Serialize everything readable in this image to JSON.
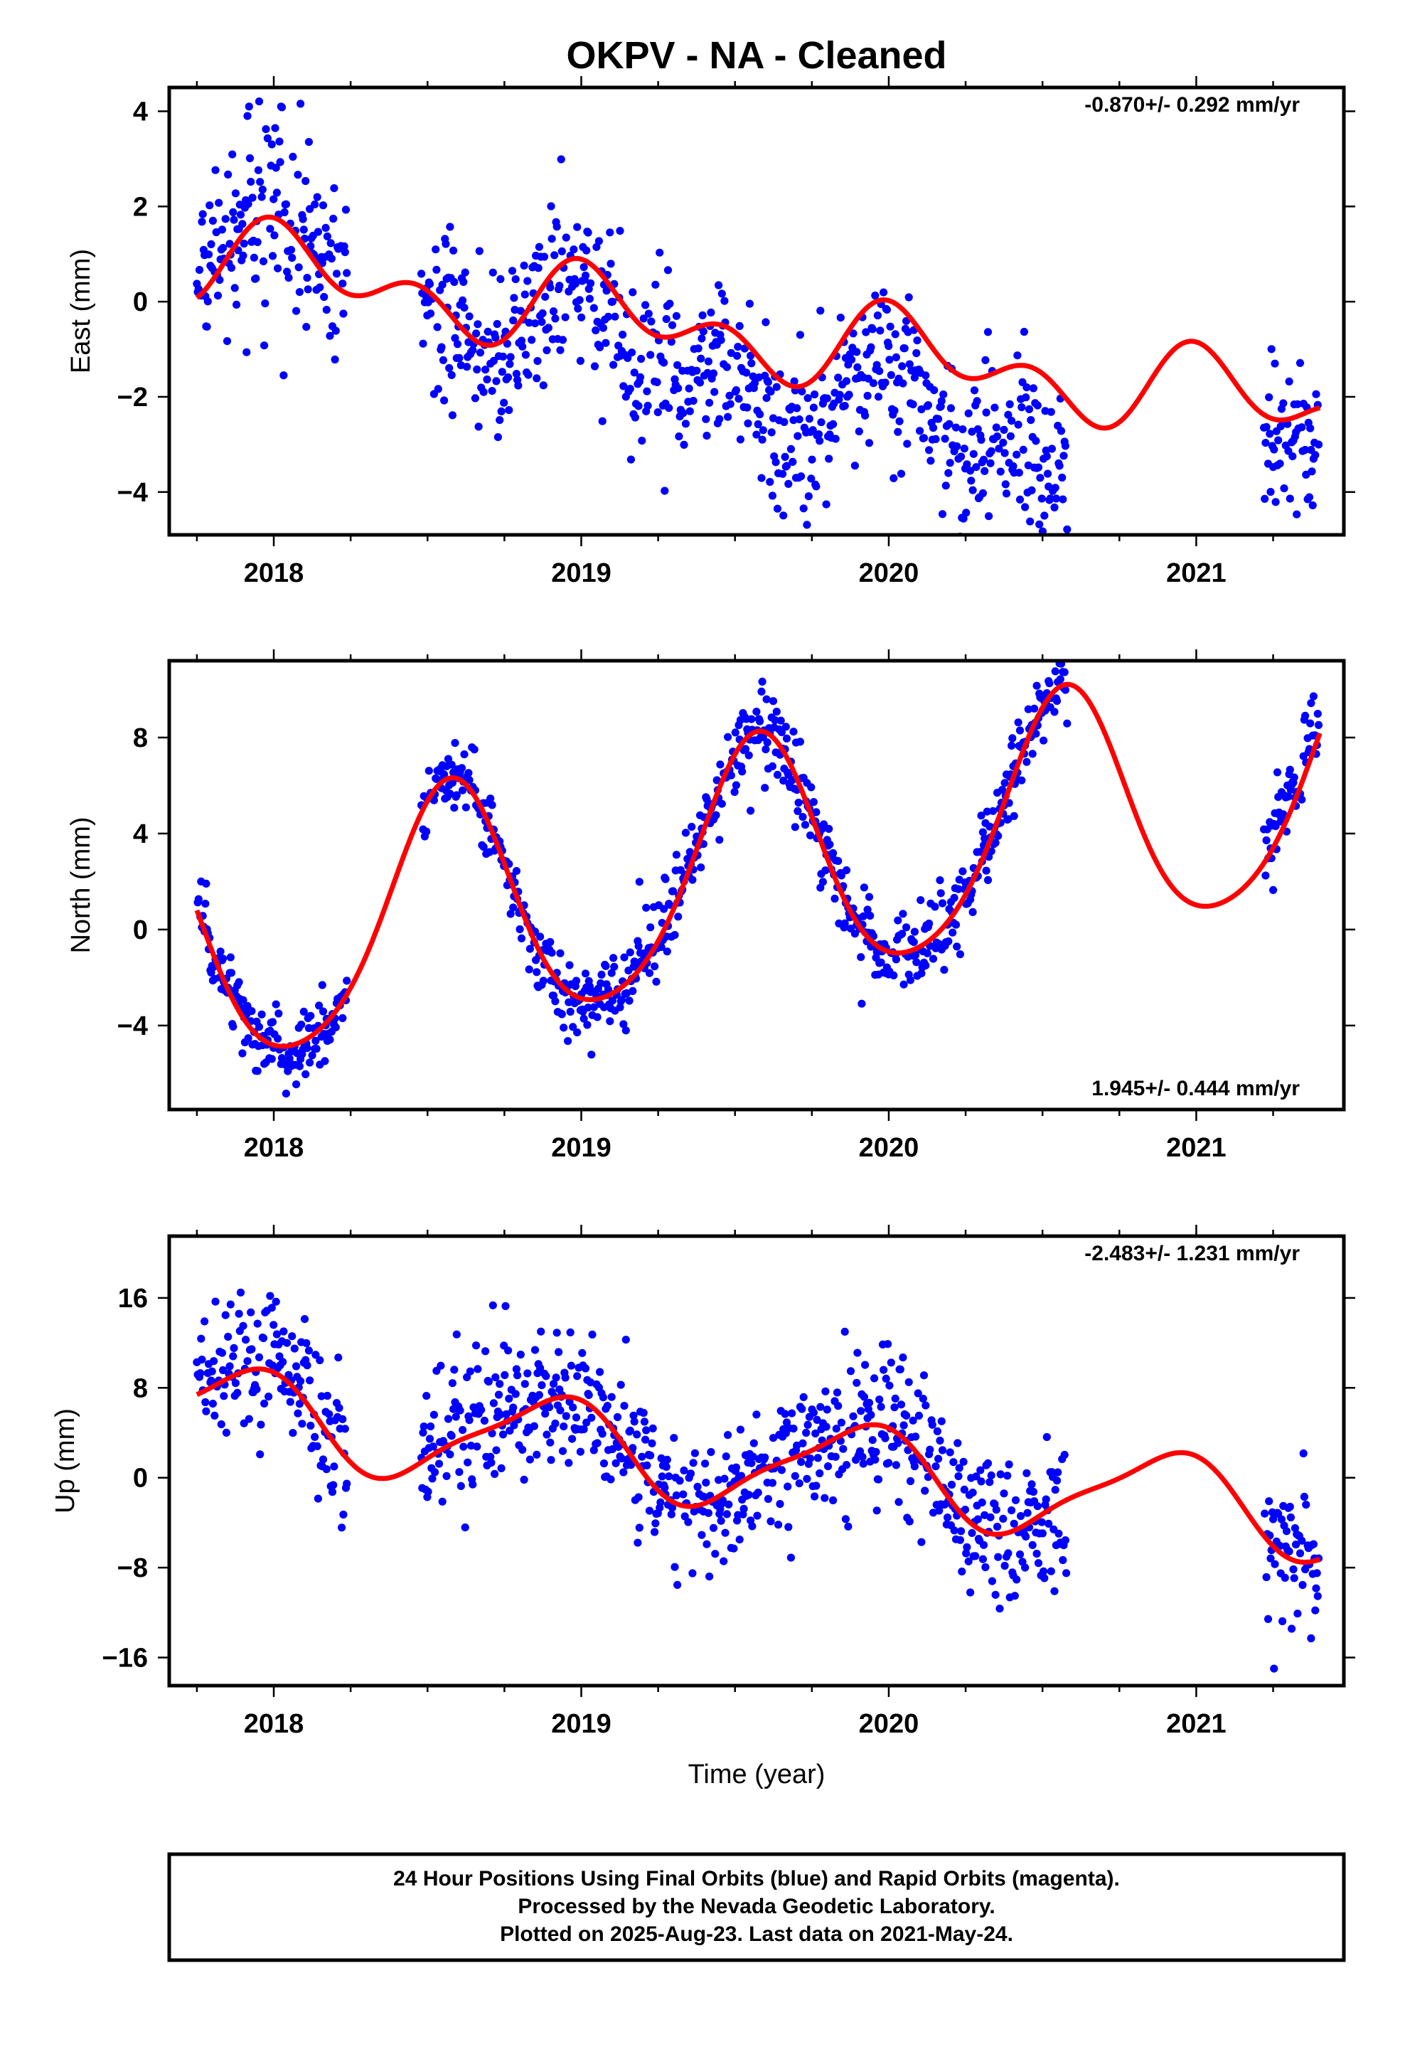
{
  "title": "OKPV  - NA - Cleaned",
  "xlabel": "Time (year)",
  "footer": {
    "line1": "24 Hour Positions Using Final Orbits (blue) and Rapid Orbits (magenta).",
    "line2": "Processed by the Nevada Geodetic Laboratory.",
    "line3": "Plotted on 2025-Aug-23. Last data on 2021-May-24."
  },
  "colors": {
    "points": "#0000ff",
    "fit": "#ff0000",
    "frame": "#000000"
  },
  "chart_data": [
    {
      "type": "scatter",
      "ylabel": "East (mm)",
      "rate": "-0.870+/- 0.292 mm/yr",
      "rate_position": "top-right",
      "xlim": [
        2017.66,
        2021.48
      ],
      "ylim": [
        -4.9,
        4.5
      ],
      "xticks": [
        2018,
        2019,
        2020,
        2021
      ],
      "yticks": [
        -4,
        -2,
        0,
        2,
        4
      ],
      "trend": {
        "t0": 2017.75,
        "a": 0.88,
        "rate": -0.87,
        "c1": 0.55,
        "s1": 0.25,
        "c2": 0.55,
        "s2": -0.2
      },
      "segments": [
        {
          "start": 2017.75,
          "end": 2018.24,
          "base": 0.3,
          "slope": 0.0,
          "noise": 1.0
        },
        {
          "start": 2018.48,
          "end": 2020.58,
          "base": -0.1,
          "slope": -0.8,
          "noise": 0.9
        },
        {
          "start": 2021.22,
          "end": 2021.4,
          "base": -0.6,
          "slope": 0.0,
          "noise": 0.9
        }
      ]
    },
    {
      "type": "scatter",
      "ylabel": "North (mm)",
      "rate": "1.945+/- 0.444 mm/yr",
      "rate_position": "bottom-right",
      "xlim": [
        2017.66,
        2021.48
      ],
      "ylim": [
        -7.5,
        11.2
      ],
      "xticks": [
        2018,
        2019,
        2020,
        2021
      ],
      "yticks": [
        -4,
        0,
        4,
        8
      ],
      "trend": {
        "t0": 2017.75,
        "a": -1.0,
        "rate": 1.945,
        "c1": -4.6,
        "s1": -2.1,
        "c2": 0.3,
        "s2": 0.6
      },
      "segments": [
        {
          "start": 2017.75,
          "end": 2018.24,
          "base": 0.0,
          "slope": 0.0,
          "noise": 0.75
        },
        {
          "start": 2018.48,
          "end": 2020.58,
          "base": 0.0,
          "slope": 0.0,
          "noise": 0.8
        },
        {
          "start": 2021.22,
          "end": 2021.4,
          "base": 0.6,
          "slope": 0.0,
          "noise": 0.9
        }
      ]
    },
    {
      "type": "scatter",
      "ylabel": "Up (mm)",
      "rate": "-2.483+/- 1.231 mm/yr",
      "rate_position": "top-right",
      "xlim": [
        2017.66,
        2021.48
      ],
      "ylim": [
        -18.5,
        21.5
      ],
      "xticks": [
        2018,
        2019,
        2020,
        2021
      ],
      "yticks": [
        -16,
        -8,
        0,
        8,
        16
      ],
      "trend": {
        "t0": 2017.75,
        "a": 5.9,
        "rate": -2.483,
        "c1": 3.2,
        "s1": -2.4,
        "c2": 0.9,
        "s2": 0.4
      },
      "segments": [
        {
          "start": 2017.75,
          "end": 2018.24,
          "base": 1.5,
          "slope": -2.0,
          "noise": 3.2
        },
        {
          "start": 2018.48,
          "end": 2020.58,
          "base": 0.5,
          "slope": -0.3,
          "noise": 3.4
        },
        {
          "start": 2021.22,
          "end": 2021.4,
          "base": 1.0,
          "slope": 0.0,
          "noise": 3.6
        }
      ]
    }
  ]
}
